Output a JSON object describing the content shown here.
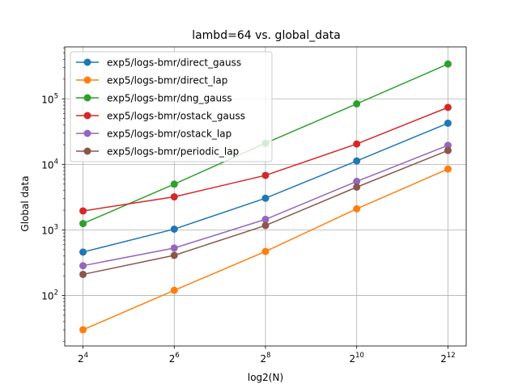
{
  "chart_data": {
    "type": "line",
    "title": "lambd=64 vs. global_data",
    "xlabel": "log2(N)",
    "ylabel": "Global data",
    "x": [
      16,
      64,
      256,
      1024,
      4096
    ],
    "x_tick_bases": [
      "2",
      "2",
      "2",
      "2",
      "2"
    ],
    "x_tick_exps": [
      "4",
      "6",
      "8",
      "10",
      "12"
    ],
    "x_tick_display": [
      "2^4",
      "2^6",
      "2^8",
      "2^1 0",
      "2^1 2"
    ],
    "y_scale": "log",
    "ylim": [
      17,
      620000
    ],
    "y_ticks": [
      100,
      1000,
      10000,
      100000
    ],
    "y_tick_exps": [
      "2",
      "3",
      "4",
      "5"
    ],
    "grid": true,
    "legend_position": "upper-left",
    "series": [
      {
        "name": "exp5/logs-bmr/direct_gauss",
        "color": "#1f77b4",
        "values": [
          460,
          1030,
          3050,
          11300,
          42500
        ]
      },
      {
        "name": "exp5/logs-bmr/direct_lap",
        "color": "#ff7f0e",
        "values": [
          30,
          120,
          470,
          2100,
          8500
        ]
      },
      {
        "name": "exp5/logs-bmr/dng_gauss",
        "color": "#2ca02c",
        "values": [
          1250,
          5000,
          21000,
          84000,
          340000
        ]
      },
      {
        "name": "exp5/logs-bmr/ostack_gauss",
        "color": "#d62728",
        "values": [
          1950,
          3200,
          6800,
          20500,
          74000
        ]
      },
      {
        "name": "exp5/logs-bmr/ostack_lap",
        "color": "#9467bd",
        "values": [
          285,
          530,
          1450,
          5500,
          19500
        ]
      },
      {
        "name": "exp5/logs-bmr/periodic_lap",
        "color": "#8c564b",
        "values": [
          210,
          410,
          1170,
          4500,
          16300
        ]
      }
    ]
  }
}
